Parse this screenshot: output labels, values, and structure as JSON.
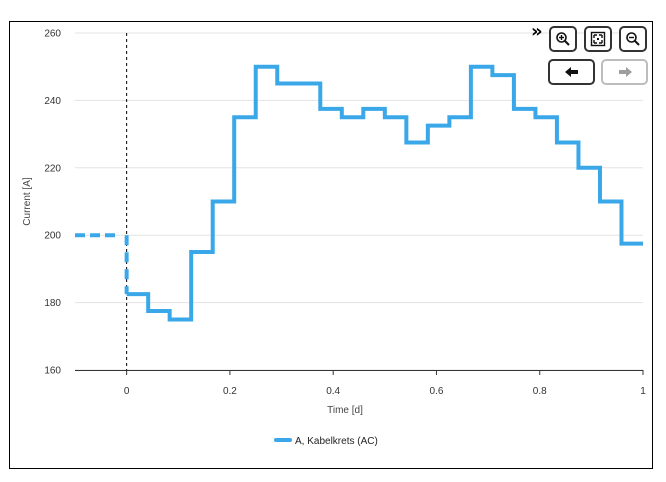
{
  "chart_data": {
    "type": "line",
    "step": true,
    "title": "",
    "xlabel": "Time [d]",
    "ylabel": "Current [A]",
    "xlim": [
      -0.1,
      1.0
    ],
    "ylim": [
      160,
      260
    ],
    "x_ticks": [
      0,
      0.2,
      0.4,
      0.6,
      0.8,
      1
    ],
    "x_tick_labels": [
      "0",
      "0.2",
      "0.4",
      "0.6",
      "0.8",
      "1"
    ],
    "y_ticks": [
      160,
      180,
      200,
      220,
      240,
      260
    ],
    "y_tick_labels": [
      "160",
      "180",
      "200",
      "220",
      "240",
      "260"
    ],
    "grid": "horizontal",
    "legend": "bottom-center",
    "cursor_x": 0,
    "history": {
      "x": [
        -0.1,
        -0.02
      ],
      "y": [
        200,
        200
      ]
    },
    "series": [
      {
        "name": "A, Kabelkrets (AC)",
        "color": "#3aa8e8",
        "x": [
          0,
          0.0417,
          0.0833,
          0.125,
          0.1667,
          0.2083,
          0.25,
          0.2917,
          0.3333,
          0.375,
          0.4167,
          0.4583,
          0.5,
          0.5417,
          0.5833,
          0.625,
          0.6667,
          0.7083,
          0.75,
          0.7917,
          0.8333,
          0.875,
          0.9167,
          0.9583,
          1.0
        ],
        "y": [
          182.5,
          177.5,
          175,
          195,
          210,
          235,
          250,
          245,
          245,
          237.5,
          235,
          237.5,
          235,
          227.5,
          232.5,
          235,
          250,
          247.5,
          237.5,
          235,
          227.5,
          220,
          210,
          197.5,
          197.5
        ]
      }
    ]
  },
  "toolbar": {
    "expand_icon": "double-chevron-right-icon",
    "zoom_in_icon": "zoom-in-icon",
    "zoom_fit_icon": "zoom-fit-icon",
    "zoom_out_icon": "zoom-out-icon",
    "back_icon": "arrow-left-icon",
    "forward_icon": "arrow-right-icon"
  }
}
